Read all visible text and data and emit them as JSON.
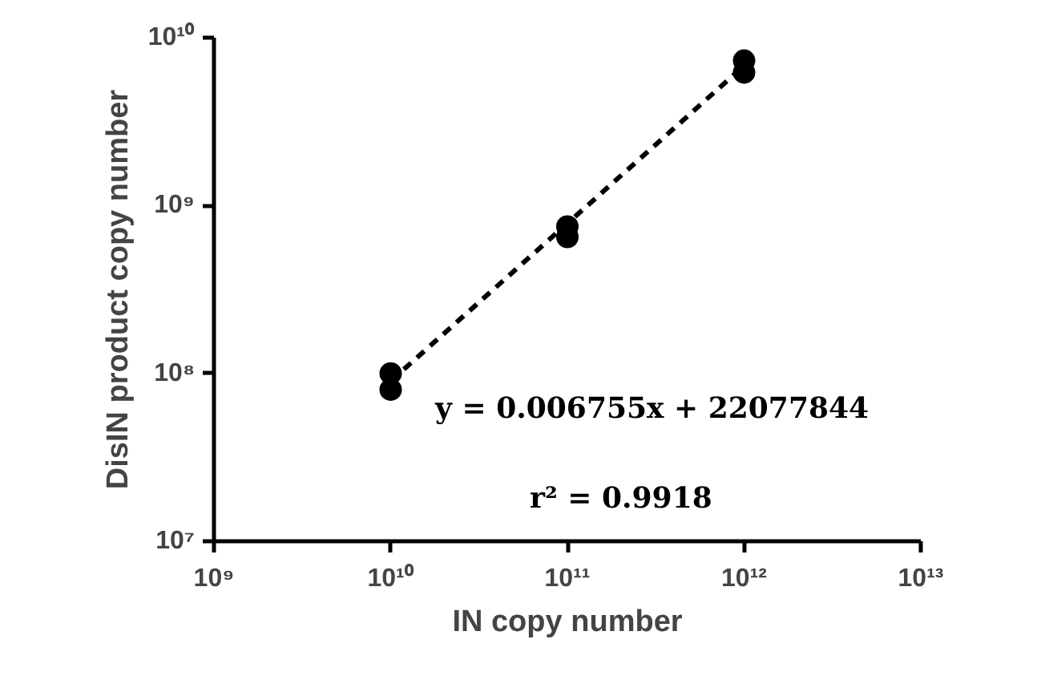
{
  "chart_data": {
    "type": "scatter",
    "xlabel": "IN copy number",
    "ylabel": "DisIN product copy number",
    "log": "xy",
    "xlim": [
      1000000000.0,
      10000000000000.0
    ],
    "ylim": [
      10000000.0,
      10000000000.0
    ],
    "xticks": [
      {
        "value": 1000000000.0,
        "label": "10⁹"
      },
      {
        "value": 10000000000.0,
        "label": "10¹⁰"
      },
      {
        "value": 100000000000.0,
        "label": "10¹¹"
      },
      {
        "value": 1000000000000.0,
        "label": "10¹²"
      },
      {
        "value": 10000000000000.0,
        "label": "10¹³"
      }
    ],
    "yticks": [
      {
        "value": 10000000.0,
        "label": "10⁷"
      },
      {
        "value": 100000000.0,
        "label": "10⁸"
      },
      {
        "value": 1000000000.0,
        "label": "10⁹"
      },
      {
        "value": 10000000000.0,
        "label": "10¹⁰"
      }
    ],
    "grid": false,
    "series": [
      {
        "color": "#000000",
        "marker": "circle",
        "x": [
          10000000000.0,
          10000000000.0,
          100000000000.0,
          100000000000.0,
          1000000000000.0,
          1000000000000.0
        ],
        "values": [
          100000000.0,
          80000000.0,
          750000000.0,
          650000000.0,
          7300000000.0,
          6200000000.0
        ]
      },
      {
        "type": "line",
        "color": "#000000",
        "line_style": "dashed",
        "x": [
          10000000000.0,
          1000000000000.0
        ],
        "values": [
          90000000.0,
          6800000000.0
        ]
      }
    ],
    "annotations": [
      "y = 0.006755x + 22077844",
      "r² = 0.9918"
    ]
  }
}
